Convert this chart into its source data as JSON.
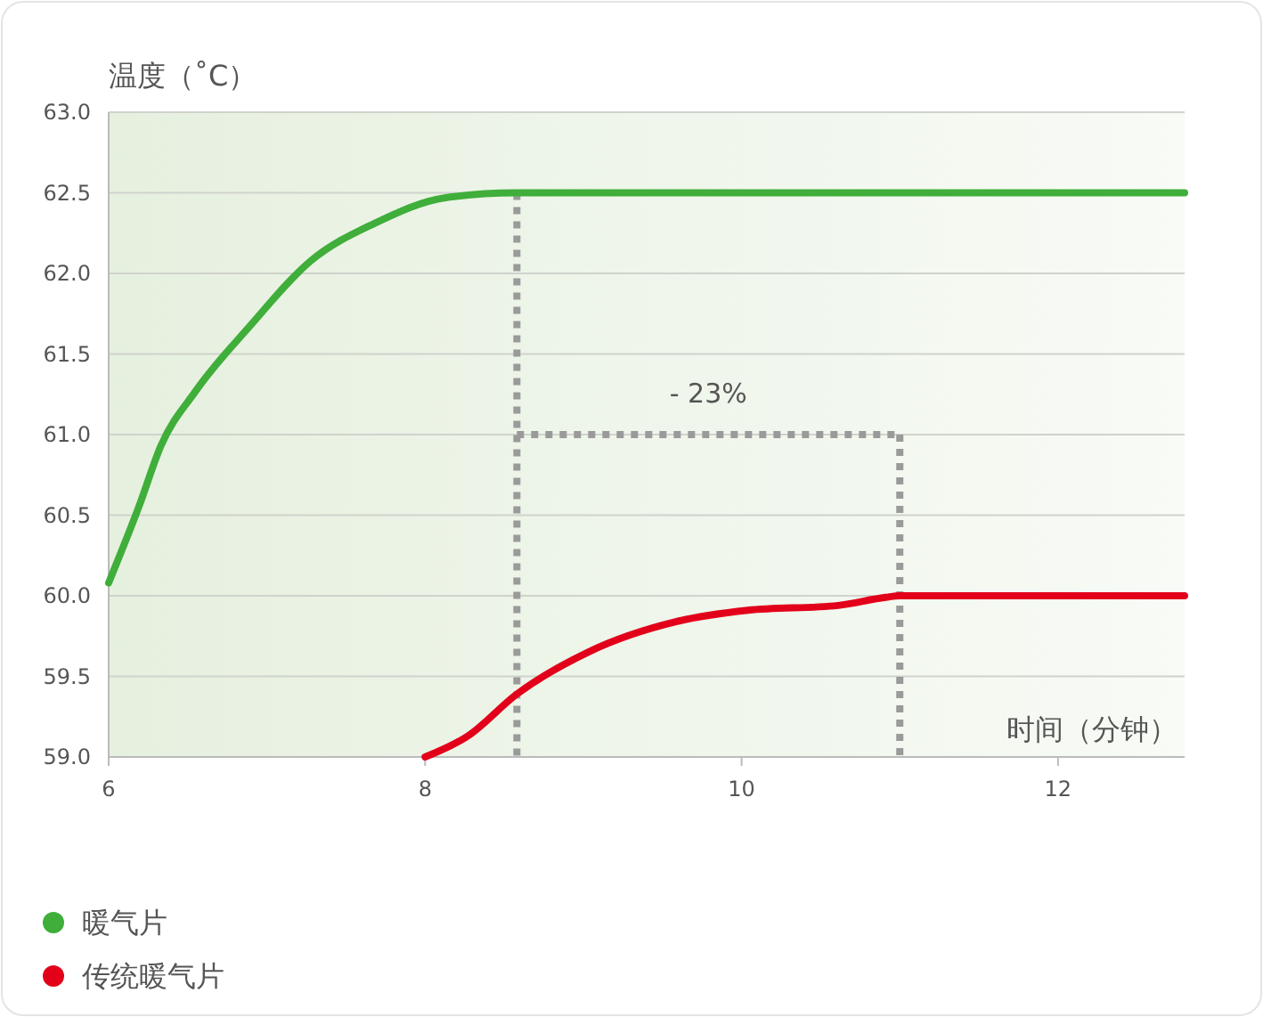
{
  "chart_data": {
    "type": "line",
    "xlabel": "时间（分钟）",
    "ylabel": "温度（˚C）",
    "xlim": [
      6,
      12.8
    ],
    "xticks": [
      6,
      8,
      10,
      12
    ],
    "ylim": [
      59,
      63
    ],
    "yticks": [
      {
        "value": 59,
        "label": "59.0"
      },
      {
        "value": 59.5,
        "label": "59.5"
      },
      {
        "value": 60,
        "label": "60.0"
      },
      {
        "value": 60.5,
        "label": "60.5"
      },
      {
        "value": 61,
        "label": "61.0"
      },
      {
        "value": 61.5,
        "label": "61.5"
      },
      {
        "value": 62,
        "label": "62.0"
      },
      {
        "value": 62.5,
        "label": "62.5"
      },
      {
        "value": 63,
        "label": "63.0"
      }
    ],
    "grid": "y",
    "legend": "bottom left",
    "marker": "none",
    "line_style": "solid",
    "annotations": [
      "- 23%"
    ],
    "ref_lines": [
      {
        "axis": "x",
        "value": 8.58,
        "color": "#9a9a9a",
        "line_style": "dotted"
      },
      {
        "axis": "x",
        "value": 11,
        "color": "#9a9a9a",
        "line_style": "dotted"
      },
      {
        "axis": "y",
        "value": 61,
        "color": "#9a9a9a",
        "line_style": "dotted"
      }
    ],
    "series": [
      {
        "name": "暖气片",
        "color": "#3fae3a",
        "x": [
          6.0,
          6.19,
          6.33,
          6.55,
          6.89,
          7.28,
          7.68,
          8.13,
          8.58,
          12.8
        ],
        "values": [
          60.08,
          60.55,
          60.93,
          61.27,
          61.67,
          62.08,
          62.31,
          62.47,
          62.5,
          62.5
        ]
      },
      {
        "name": "传统暖气片",
        "color": "#e2001a",
        "x": [
          8.0,
          8.27,
          8.58,
          9.03,
          9.59,
          10.04,
          10.61,
          10.91,
          11.0,
          12.8
        ],
        "values": [
          59.0,
          59.13,
          59.39,
          59.65,
          59.84,
          59.91,
          59.94,
          59.99,
          60.0,
          60.0
        ]
      }
    ]
  }
}
